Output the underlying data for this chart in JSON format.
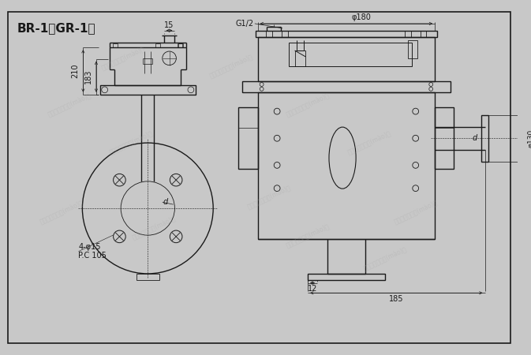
{
  "title": "BR-1、GR-1型",
  "bg_color": "#c8c8c8",
  "inner_bg": "#d4d4d4",
  "line_color": "#1a1a1a",
  "watermark_color": "#aaaaaa",
  "annotations": {
    "dim_15": "15",
    "dim_G12": "G1/2",
    "dim_phi180": "φ180",
    "dim_210": "210",
    "dim_193": "183",
    "dim_d_left": "d",
    "dim_4phi15": "4-φ15",
    "dim_PC105": "P.C 105",
    "dim_12": "12",
    "dim_185": "185",
    "dim_d_right": "d",
    "dim_phi130": "φ130"
  }
}
